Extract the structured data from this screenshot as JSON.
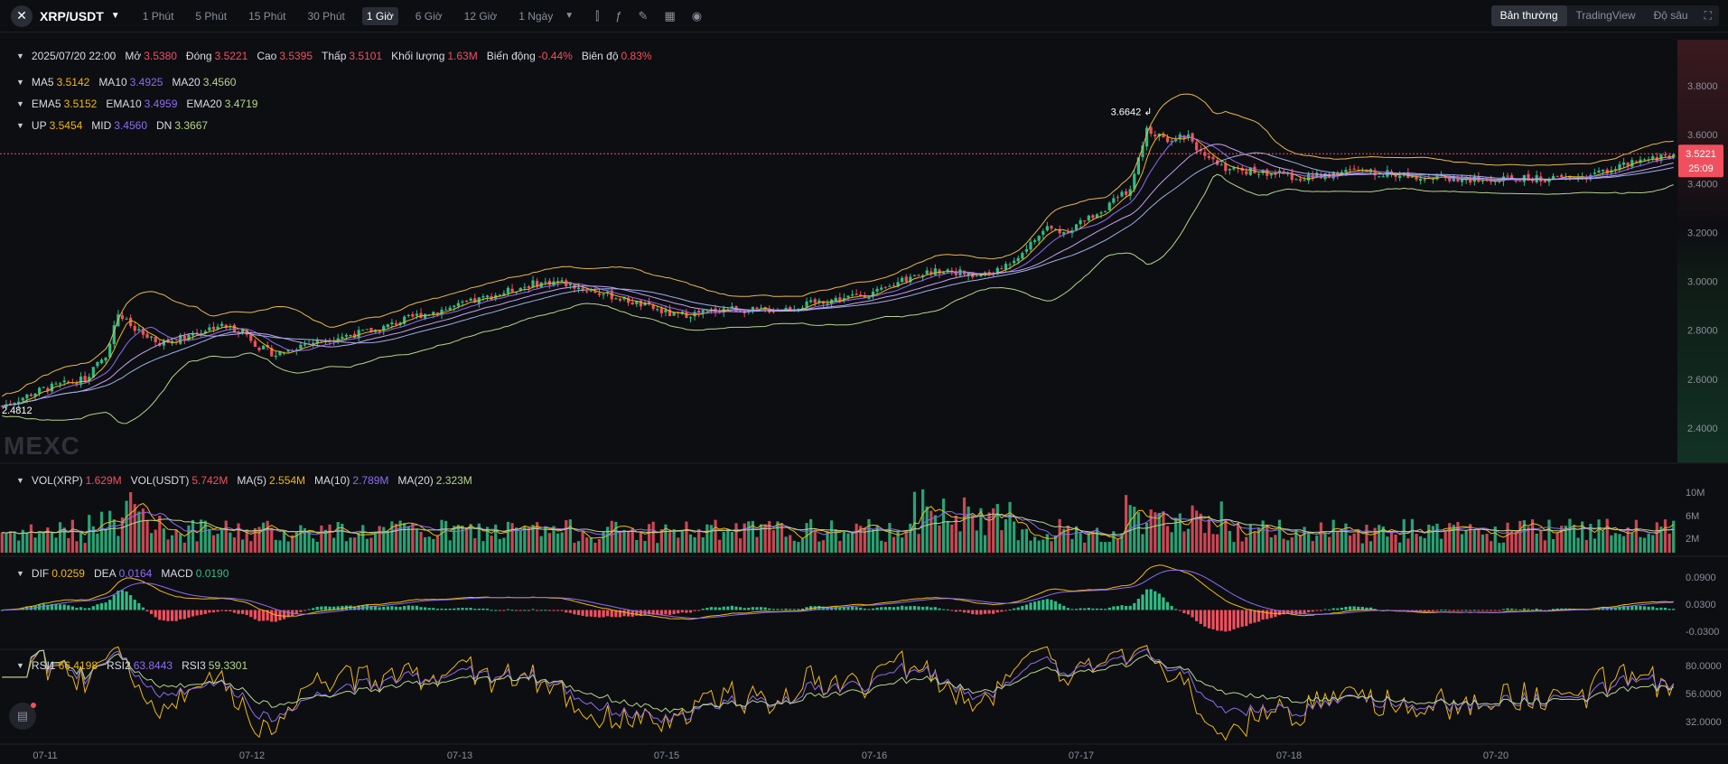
{
  "header": {
    "pair": "XRP/USDT",
    "intervals": [
      "1 Phút",
      "5 Phút",
      "15 Phút",
      "30 Phút",
      "1 Giờ",
      "6 Giờ",
      "12 Giờ",
      "1 Ngày"
    ],
    "active_interval": 4,
    "modes": [
      "Bản thường",
      "TradingView",
      "Độ sâu"
    ],
    "active_mode": 0
  },
  "ohlc": {
    "date": "2025/07/20 22:00",
    "items": [
      {
        "label": "Mở",
        "value": "3.5380"
      },
      {
        "label": "Đóng",
        "value": "3.5221"
      },
      {
        "label": "Cao",
        "value": "3.5395"
      },
      {
        "label": "Thấp",
        "value": "3.5101"
      },
      {
        "label": "Khối lượng",
        "value": "1.63M"
      },
      {
        "label": "Biến động",
        "value": "-0.44%"
      },
      {
        "label": "Biên độ",
        "value": "0.83%"
      }
    ]
  },
  "indicators": {
    "ma": [
      {
        "label": "MA5",
        "value": "3.5142"
      },
      {
        "label": "MA10",
        "value": "3.4925"
      },
      {
        "label": "MA20",
        "value": "3.4560"
      }
    ],
    "ema": [
      {
        "label": "EMA5",
        "value": "3.5152"
      },
      {
        "label": "EMA10",
        "value": "3.4959"
      },
      {
        "label": "EMA20",
        "value": "3.4719"
      }
    ],
    "boll": [
      {
        "label": "UP",
        "value": "3.5454"
      },
      {
        "label": "MID",
        "value": "3.4560"
      },
      {
        "label": "DN",
        "value": "3.3667"
      }
    ],
    "vol": [
      {
        "label": "VOL(XRP)",
        "value": "1.629M"
      },
      {
        "label": "VOL(USDT)",
        "value": "5.742M"
      },
      {
        "label": "MA(5)",
        "value": "2.554M"
      },
      {
        "label": "MA(10)",
        "value": "2.789M"
      },
      {
        "label": "MA(20)",
        "value": "2.323M"
      }
    ],
    "macd": [
      {
        "label": "DIF",
        "value": "0.0259"
      },
      {
        "label": "DEA",
        "value": "0.0164"
      },
      {
        "label": "MACD",
        "value": "0.0190"
      }
    ],
    "rsi": [
      {
        "label": "RSI1",
        "value": "66.4198"
      },
      {
        "label": "RSI2",
        "value": "63.8443"
      },
      {
        "label": "RSI3",
        "value": "59.3301"
      }
    ]
  },
  "price_tag": {
    "price": "3.5221",
    "countdown": "25:09"
  },
  "watermark": "MEXC",
  "colors": {
    "up": "#2ebd85",
    "down": "#f0505e",
    "ma5": "#f0b90b",
    "ma10": "#8e6cf0",
    "ma20": "#b5d58a",
    "text": "#c9ccd4",
    "bg": "#0d0e12"
  },
  "chart_data": {
    "type": "candlestick",
    "price_ticks": [
      "3.8000",
      "3.6000",
      "3.4000",
      "3.2000",
      "3.0000",
      "2.8000",
      "2.6000",
      "2.4000"
    ],
    "volume_ticks": [
      "10M",
      "6M",
      "2M"
    ],
    "macd_ticks": [
      "0.0900",
      "0.0300",
      "-0.0300"
    ],
    "rsi_ticks": [
      "80.0000",
      "56.0000",
      "32.0000"
    ],
    "x_ticks": [
      "07-11",
      "07-12",
      "07-13",
      "07-15",
      "07-16",
      "07-17",
      "07-18",
      "07-20"
    ],
    "annotations": {
      "high": "3.6642",
      "low": "2.4812"
    },
    "close_path": [
      [
        0,
        2.49
      ],
      [
        10,
        2.56
      ],
      [
        20,
        2.6
      ],
      [
        25,
        2.7
      ],
      [
        28,
        2.87
      ],
      [
        32,
        2.8
      ],
      [
        38,
        2.74
      ],
      [
        45,
        2.78
      ],
      [
        52,
        2.82
      ],
      [
        58,
        2.8
      ],
      [
        62,
        2.73
      ],
      [
        66,
        2.7
      ],
      [
        72,
        2.74
      ],
      [
        80,
        2.77
      ],
      [
        90,
        2.8
      ],
      [
        100,
        2.86
      ],
      [
        110,
        2.9
      ],
      [
        120,
        2.95
      ],
      [
        128,
        2.99
      ],
      [
        134,
        3.0
      ],
      [
        140,
        2.97
      ],
      [
        147,
        2.94
      ],
      [
        155,
        2.9
      ],
      [
        162,
        2.86
      ],
      [
        168,
        2.87
      ],
      [
        175,
        2.89
      ],
      [
        182,
        2.88
      ],
      [
        190,
        2.89
      ],
      [
        198,
        2.92
      ],
      [
        206,
        2.94
      ],
      [
        212,
        2.96
      ],
      [
        220,
        3.03
      ],
      [
        228,
        3.05
      ],
      [
        234,
        3.02
      ],
      [
        240,
        3.04
      ],
      [
        246,
        3.12
      ],
      [
        252,
        3.22
      ],
      [
        256,
        3.2
      ],
      [
        260,
        3.24
      ],
      [
        266,
        3.3
      ],
      [
        272,
        3.38
      ],
      [
        276,
        3.62
      ],
      [
        280,
        3.58
      ],
      [
        286,
        3.6
      ],
      [
        290,
        3.5
      ],
      [
        296,
        3.46
      ],
      [
        302,
        3.45
      ],
      [
        308,
        3.44
      ],
      [
        314,
        3.42
      ],
      [
        320,
        3.44
      ],
      [
        326,
        3.45
      ],
      [
        334,
        3.44
      ],
      [
        342,
        3.43
      ],
      [
        350,
        3.42
      ],
      [
        358,
        3.41
      ],
      [
        366,
        3.42
      ],
      [
        374,
        3.42
      ],
      [
        382,
        3.43
      ],
      [
        390,
        3.47
      ],
      [
        398,
        3.5
      ],
      [
        403,
        3.52
      ]
    ]
  }
}
